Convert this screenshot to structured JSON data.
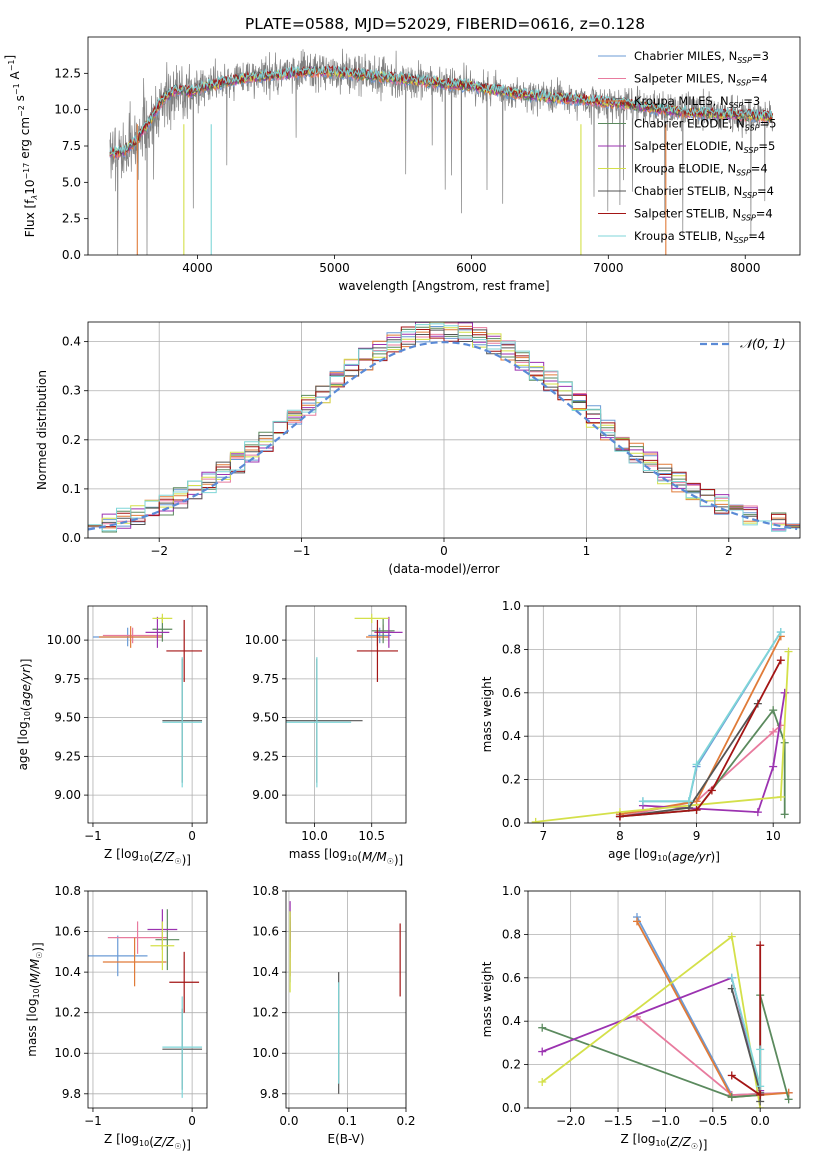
{
  "title": "PLATE=0588, MJD=52029, FIBERID=0616, z=0.128",
  "colors": {
    "Chabrier MILES": "#6b9bd6",
    "Salpeter MILES": "#e87b9e",
    "Kroupa MILES": "#e07b39",
    "Chabrier ELODIE": "#5b8a5e",
    "Salpeter ELODIE": "#9b32b0",
    "Kroupa ELODIE": "#d4e04a",
    "Chabrier STELIB": "#555555",
    "Salpeter STELIB": "#a31515",
    "Kroupa STELIB": "#7fd6d8"
  },
  "chart_data": [
    {
      "id": "spectrum",
      "type": "line",
      "xlabel": "wavelength [Angstrom, rest frame]",
      "ylabel": "Flux [f",
      "xlim": [
        3200,
        8400
      ],
      "ylim": [
        0,
        15
      ],
      "xticks": [
        4000,
        5000,
        6000,
        7000,
        8000
      ],
      "yticks": [
        0.0,
        2.5,
        5.0,
        7.5,
        10.0,
        12.5
      ],
      "legend_loc": "right",
      "legend": [
        {
          "name": "Chabrier MILES",
          "n": "3"
        },
        {
          "name": "Salpeter MILES",
          "n": "4"
        },
        {
          "name": "Kroupa MILES",
          "n": "3"
        },
        {
          "name": "Chabrier ELODIE",
          "n": "5"
        },
        {
          "name": "Salpeter ELODIE",
          "n": "5"
        },
        {
          "name": "Kroupa ELODIE",
          "n": "4"
        },
        {
          "name": "Chabrier STELIB",
          "n": "4"
        },
        {
          "name": "Salpeter STELIB",
          "n": "4"
        },
        {
          "name": "Kroupa STELIB",
          "n": "4"
        }
      ],
      "continuum": [
        [
          3350,
          7.0
        ],
        [
          3450,
          7.1
        ],
        [
          3550,
          7.8
        ],
        [
          3650,
          9.2
        ],
        [
          3750,
          10.8
        ],
        [
          3850,
          11.4
        ],
        [
          3950,
          11.2
        ],
        [
          4050,
          11.6
        ],
        [
          4200,
          11.9
        ],
        [
          4400,
          12.2
        ],
        [
          4600,
          12.4
        ],
        [
          4800,
          12.6
        ],
        [
          5000,
          12.6
        ],
        [
          5200,
          12.4
        ],
        [
          5400,
          12.2
        ],
        [
          5600,
          12.0
        ],
        [
          5800,
          11.8
        ],
        [
          6000,
          11.6
        ],
        [
          6200,
          11.3
        ],
        [
          6400,
          11.0
        ],
        [
          6600,
          10.8
        ],
        [
          6800,
          10.7
        ],
        [
          7000,
          10.5
        ],
        [
          7200,
          10.3
        ],
        [
          7400,
          10.0
        ],
        [
          7600,
          9.8
        ],
        [
          7800,
          9.7
        ],
        [
          8000,
          9.6
        ],
        [
          8200,
          9.5
        ]
      ]
    },
    {
      "id": "residuals",
      "type": "histogram",
      "xlabel": "(data-model)/error",
      "ylabel": "Normed distribution",
      "xlim": [
        -2.5,
        2.5
      ],
      "ylim": [
        0,
        0.44
      ],
      "xticks": [
        -2,
        -1,
        0,
        1,
        2
      ],
      "yticks": [
        0.0,
        0.1,
        0.2,
        0.3,
        0.4
      ],
      "legend_loc": "upper right",
      "legend_label": "(0, 1)",
      "grid": true,
      "bin_width": 0.1
    },
    {
      "id": "age-vs-Z",
      "type": "errorbar",
      "xlabel": "Z [log",
      "ylabel": "age  [log",
      "xlim": [
        -1.05,
        0.15
      ],
      "ylim": [
        8.82,
        10.22
      ],
      "xticks": [
        -1,
        0
      ],
      "yticks": [
        9.0,
        9.25,
        9.5,
        9.75,
        10.0
      ],
      "grid": true,
      "points": [
        {
          "s": "Chabrier MILES",
          "x": -0.65,
          "y": 10.02,
          "xe": 0.35,
          "ye": 0.06
        },
        {
          "s": "Salpeter MILES",
          "x": -0.6,
          "y": 10.03,
          "xe": 0.3,
          "ye": 0.05
        },
        {
          "s": "Kroupa MILES",
          "x": -0.62,
          "y": 10.02,
          "xe": 0.32,
          "ye": 0.07
        },
        {
          "s": "Chabrier ELODIE",
          "x": -0.3,
          "y": 10.07,
          "xe": 0.1,
          "ye": 0.08
        },
        {
          "s": "Salpeter ELODIE",
          "x": -0.35,
          "y": 10.05,
          "xe": 0.12,
          "ye": 0.1
        },
        {
          "s": "Kroupa ELODIE",
          "x": -0.3,
          "y": 10.14,
          "xe": 0.1,
          "ye": 0.03
        },
        {
          "s": "Chabrier STELIB",
          "x": -0.1,
          "y": 9.48,
          "xe": 0.2,
          "ye": 0.4
        },
        {
          "s": "Salpeter STELIB",
          "x": -0.08,
          "y": 9.93,
          "xe": 0.18,
          "ye": 0.2
        },
        {
          "s": "Kroupa STELIB",
          "x": -0.1,
          "y": 9.47,
          "xe": 0.2,
          "ye": 0.42
        }
      ]
    },
    {
      "id": "age-vs-mass",
      "type": "errorbar",
      "xlabel": "mass [log",
      "ylabel": "",
      "xlim": [
        9.75,
        10.8
      ],
      "ylim": [
        8.82,
        10.22
      ],
      "xticks": [
        10.0,
        10.5
      ],
      "yticks": [
        9.0,
        9.25,
        9.5,
        9.75,
        10.0
      ],
      "grid": true,
      "points": [
        {
          "s": "Chabrier MILES",
          "x": 10.57,
          "y": 10.03,
          "xe": 0.1,
          "ye": 0.05
        },
        {
          "s": "Salpeter MILES",
          "x": 10.6,
          "y": 10.05,
          "xe": 0.08,
          "ye": 0.05
        },
        {
          "s": "Kroupa MILES",
          "x": 10.55,
          "y": 10.02,
          "xe": 0.1,
          "ye": 0.06
        },
        {
          "s": "Chabrier ELODIE",
          "x": 10.6,
          "y": 10.06,
          "xe": 0.1,
          "ye": 0.08
        },
        {
          "s": "Salpeter ELODIE",
          "x": 10.65,
          "y": 10.05,
          "xe": 0.12,
          "ye": 0.1
        },
        {
          "s": "Kroupa ELODIE",
          "x": 10.5,
          "y": 10.14,
          "xe": 0.15,
          "ye": 0.03
        },
        {
          "s": "Chabrier STELIB",
          "x": 10.02,
          "y": 9.48,
          "xe": 0.4,
          "ye": 0.4
        },
        {
          "s": "Salpeter STELIB",
          "x": 10.55,
          "y": 9.93,
          "xe": 0.18,
          "ye": 0.2
        },
        {
          "s": "Kroupa STELIB",
          "x": 10.02,
          "y": 9.47,
          "xe": 0.3,
          "ye": 0.42
        }
      ]
    },
    {
      "id": "weight-vs-age",
      "type": "line",
      "xlabel": "age  [log",
      "ylabel": "mass weight",
      "xlim": [
        6.8,
        10.35
      ],
      "ylim": [
        0,
        1.0
      ],
      "xticks": [
        7,
        8,
        9,
        10
      ],
      "yticks": [
        0.0,
        0.2,
        0.4,
        0.6,
        0.8,
        1.0
      ],
      "grid": true,
      "series": [
        {
          "s": "Chabrier MILES",
          "pts": [
            [
              8.3,
              0.1
            ],
            [
              8.9,
              0.1
            ],
            [
              9.0,
              0.26
            ],
            [
              10.1,
              0.88
            ]
          ]
        },
        {
          "s": "Salpeter MILES",
          "pts": [
            [
              8.0,
              0.03
            ],
            [
              9.0,
              0.1
            ],
            [
              10.0,
              0.42
            ],
            [
              10.1,
              0.45
            ]
          ]
        },
        {
          "s": "Kroupa MILES",
          "pts": [
            [
              8.0,
              0.04
            ],
            [
              9.0,
              0.1
            ],
            [
              10.1,
              0.86
            ]
          ]
        },
        {
          "s": "Chabrier ELODIE",
          "pts": [
            [
              8.0,
              0.03
            ],
            [
              9.0,
              0.06
            ],
            [
              10.0,
              0.52
            ],
            [
              10.15,
              0.37
            ],
            [
              10.15,
              0.04
            ]
          ]
        },
        {
          "s": "Salpeter ELODIE",
          "pts": [
            [
              8.3,
              0.08
            ],
            [
              9.8,
              0.05
            ],
            [
              10.0,
              0.26
            ],
            [
              10.15,
              0.6
            ]
          ]
        },
        {
          "s": "Kroupa ELODIE",
          "pts": [
            [
              6.9,
              0.005
            ],
            [
              8.0,
              0.05
            ],
            [
              10.1,
              0.12
            ],
            [
              10.2,
              0.79
            ]
          ]
        },
        {
          "s": "Chabrier STELIB",
          "pts": [
            [
              8.0,
              0.03
            ],
            [
              8.9,
              0.07
            ],
            [
              9.8,
              0.55
            ]
          ]
        },
        {
          "s": "Salpeter STELIB",
          "pts": [
            [
              8.0,
              0.03
            ],
            [
              9.0,
              0.06
            ],
            [
              9.2,
              0.15
            ],
            [
              10.1,
              0.75
            ]
          ]
        },
        {
          "s": "Kroupa STELIB",
          "pts": [
            [
              8.3,
              0.1
            ],
            [
              8.9,
              0.1
            ],
            [
              9.0,
              0.27
            ],
            [
              10.1,
              0.88
            ]
          ]
        }
      ]
    },
    {
      "id": "mass-vs-Z",
      "type": "errorbar",
      "xlabel": "Z [log",
      "ylabel": "mass [log",
      "xlim": [
        -1.05,
        0.15
      ],
      "ylim": [
        9.73,
        10.8
      ],
      "xticks": [
        -1,
        0
      ],
      "yticks": [
        9.8,
        10.0,
        10.2,
        10.4,
        10.6,
        10.8
      ],
      "grid": true,
      "points": [
        {
          "s": "Chabrier MILES",
          "x": -0.75,
          "y": 10.48,
          "xe": 0.3,
          "ye": 0.1
        },
        {
          "s": "Salpeter MILES",
          "x": -0.55,
          "y": 10.57,
          "xe": 0.3,
          "ye": 0.08
        },
        {
          "s": "Kroupa MILES",
          "x": -0.58,
          "y": 10.45,
          "xe": 0.32,
          "ye": 0.12
        },
        {
          "s": "Chabrier ELODIE",
          "x": -0.25,
          "y": 10.56,
          "xe": 0.12,
          "ye": 0.15
        },
        {
          "s": "Salpeter ELODIE",
          "x": -0.3,
          "y": 10.61,
          "xe": 0.15,
          "ye": 0.1
        },
        {
          "s": "Kroupa ELODIE",
          "x": -0.3,
          "y": 10.53,
          "xe": 0.12,
          "ye": 0.12
        },
        {
          "s": "Chabrier STELIB",
          "x": -0.1,
          "y": 10.02,
          "xe": 0.2,
          "ye": 0.2
        },
        {
          "s": "Salpeter STELIB",
          "x": -0.08,
          "y": 10.35,
          "xe": 0.15,
          "ye": 0.15
        },
        {
          "s": "Kroupa STELIB",
          "x": -0.1,
          "y": 10.03,
          "xe": 0.2,
          "ye": 0.25
        }
      ]
    },
    {
      "id": "mass-vs-EBV",
      "type": "errorbar",
      "xlabel": "E(B-V)",
      "ylabel": "",
      "xlim": [
        -0.005,
        0.2
      ],
      "ylim": [
        9.73,
        10.8
      ],
      "xticks": [
        0.0,
        0.1,
        0.2
      ],
      "yticks": [
        9.8,
        10.0,
        10.2,
        10.4,
        10.6,
        10.8
      ],
      "grid": true,
      "points": [
        {
          "s": "Chabrier MILES",
          "x": 0.002,
          "y": 10.5,
          "xe": 0.0,
          "ye": 0.15
        },
        {
          "s": "Salpeter MILES",
          "x": 0.002,
          "y": 10.57,
          "xe": 0.0,
          "ye": 0.1
        },
        {
          "s": "Kroupa MILES",
          "x": 0.002,
          "y": 10.5,
          "xe": 0.0,
          "ye": 0.12
        },
        {
          "s": "Chabrier ELODIE",
          "x": 0.002,
          "y": 10.6,
          "xe": 0.0,
          "ye": 0.1
        },
        {
          "s": "Salpeter ELODIE",
          "x": 0.002,
          "y": 10.65,
          "xe": 0.0,
          "ye": 0.1
        },
        {
          "s": "Kroupa ELODIE",
          "x": 0.002,
          "y": 10.5,
          "xe": 0.0,
          "ye": 0.2
        },
        {
          "s": "Chabrier STELIB",
          "x": 0.085,
          "y": 10.1,
          "xe": 0.0,
          "ye": 0.3
        },
        {
          "s": "Salpeter STELIB",
          "x": 0.19,
          "y": 10.46,
          "xe": 0.0,
          "ye": 0.18
        },
        {
          "s": "Kroupa STELIB",
          "x": 0.085,
          "y": 10.1,
          "xe": 0.0,
          "ye": 0.25
        }
      ]
    },
    {
      "id": "weight-vs-Z",
      "type": "line",
      "xlabel": "Z [log",
      "ylabel": "mass weight",
      "xlim": [
        -2.45,
        0.42
      ],
      "ylim": [
        0,
        1.0
      ],
      "xticks": [
        -2.0,
        -1.5,
        -1.0,
        -0.5,
        0.0
      ],
      "yticks": [
        0.0,
        0.2,
        0.4,
        0.6,
        0.8,
        1.0
      ],
      "grid": true,
      "series": [
        {
          "s": "Chabrier MILES",
          "pts": [
            [
              -1.3,
              0.88
            ],
            [
              -0.3,
              0.06
            ],
            [
              0.3,
              0.07
            ]
          ]
        },
        {
          "s": "Salpeter MILES",
          "pts": [
            [
              -1.3,
              0.42
            ],
            [
              -0.3,
              0.06
            ],
            [
              0.3,
              0.07
            ]
          ]
        },
        {
          "s": "Kroupa MILES",
          "pts": [
            [
              -1.3,
              0.86
            ],
            [
              -0.3,
              0.05
            ],
            [
              0.3,
              0.07
            ]
          ]
        },
        {
          "s": "Chabrier ELODIE",
          "pts": [
            [
              -2.3,
              0.37
            ],
            [
              -0.3,
              0.05
            ],
            [
              0.0,
              0.06
            ],
            [
              0.0,
              0.52
            ],
            [
              0.3,
              0.04
            ]
          ]
        },
        {
          "s": "Salpeter ELODIE",
          "pts": [
            [
              -2.3,
              0.26
            ],
            [
              -0.3,
              0.6
            ],
            [
              0.0,
              0.08
            ]
          ]
        },
        {
          "s": "Kroupa ELODIE",
          "pts": [
            [
              -2.3,
              0.12
            ],
            [
              -0.3,
              0.79
            ],
            [
              0.0,
              0.0
            ]
          ]
        },
        {
          "s": "Chabrier STELIB",
          "pts": [
            [
              -0.3,
              0.55
            ],
            [
              0.0,
              0.07
            ],
            [
              0.0,
              0.03
            ]
          ]
        },
        {
          "s": "Salpeter STELIB",
          "pts": [
            [
              -0.3,
              0.15
            ],
            [
              0.0,
              0.06
            ],
            [
              0.0,
              0.75
            ]
          ]
        },
        {
          "s": "Kroupa STELIB",
          "pts": [
            [
              -0.3,
              0.6
            ],
            [
              0.0,
              0.1
            ],
            [
              0.0,
              0.27
            ]
          ]
        }
      ]
    }
  ]
}
